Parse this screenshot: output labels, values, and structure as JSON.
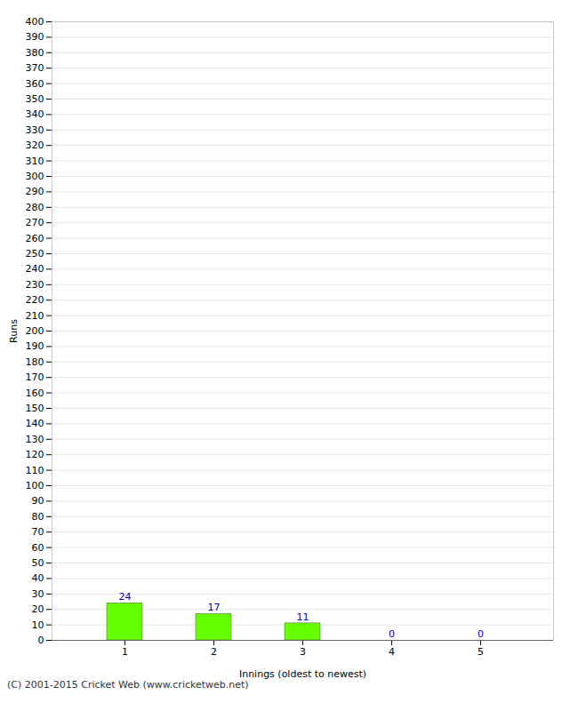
{
  "chart_data": {
    "type": "bar",
    "xlabel": "Innings (oldest to newest)",
    "ylabel": "Runs",
    "categories": [
      "1",
      "2",
      "3",
      "4",
      "5"
    ],
    "values": [
      24,
      17,
      11,
      0,
      0
    ],
    "color": "#66ff00",
    "ylim": [
      0,
      400
    ],
    "yticks": [
      0,
      10,
      20,
      30,
      40,
      50,
      60,
      70,
      80,
      90,
      100,
      110,
      120,
      130,
      140,
      150,
      160,
      170,
      180,
      190,
      200,
      210,
      220,
      230,
      240,
      250,
      260,
      270,
      280,
      290,
      300,
      310,
      320,
      330,
      340,
      350,
      360,
      370,
      380,
      390,
      400
    ],
    "grid": true,
    "data_labels": true,
    "caption": "(C) 2001-2015 Cricket Web (www.cricketweb.net)"
  }
}
